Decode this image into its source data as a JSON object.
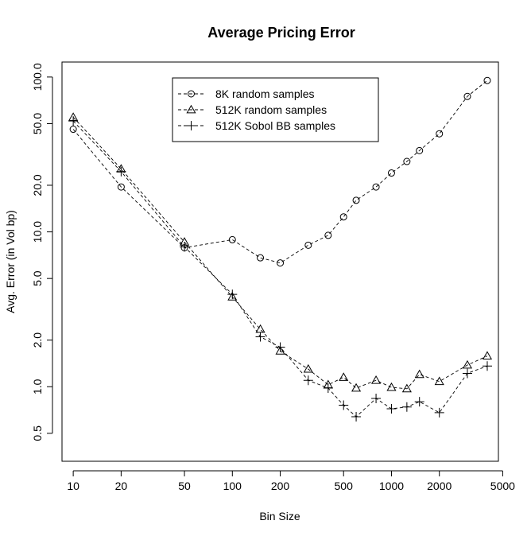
{
  "chart_data": {
    "type": "line",
    "title": "Average Pricing Error",
    "xlabel": "Bin Size",
    "ylabel": "Avg. Error (in Vol bp)",
    "x_scale": "log",
    "y_scale": "log",
    "xlim": [
      8.5,
      4700
    ],
    "ylim": [
      0.33,
      125
    ],
    "x_ticks": [
      10,
      20,
      50,
      100,
      200,
      500,
      1000,
      2000,
      5000
    ],
    "x_tick_labels": [
      "10",
      "20",
      "50",
      "100",
      "200",
      "500",
      "1000",
      "2000",
      "5000"
    ],
    "y_ticks": [
      0.5,
      1.0,
      2.0,
      5.0,
      10.0,
      20.0,
      50.0,
      100.0
    ],
    "y_tick_labels": [
      "0.5",
      "1.0",
      "2.0",
      "5.0",
      "10.0",
      "20.0",
      "50.0",
      "100.0"
    ],
    "legend_position": "top-center",
    "grid": false,
    "series": [
      {
        "name": "8K random samples",
        "marker": "circle",
        "points": [
          [
            10,
            46
          ],
          [
            20,
            19.5
          ],
          [
            50,
            7.9
          ],
          [
            100,
            8.9
          ],
          [
            150,
            6.8
          ],
          [
            200,
            6.3
          ],
          [
            300,
            8.2
          ],
          [
            400,
            9.5
          ],
          [
            500,
            12.5
          ],
          [
            600,
            16.0
          ],
          [
            800,
            19.5
          ],
          [
            1000,
            24.0
          ],
          [
            1250,
            28.5
          ],
          [
            1500,
            33.5
          ],
          [
            2000,
            43.0
          ],
          [
            3000,
            75.0
          ],
          [
            4000,
            95.0
          ]
        ]
      },
      {
        "name": "512K random samples",
        "marker": "triangle",
        "points": [
          [
            10,
            55
          ],
          [
            20,
            25.5
          ],
          [
            50,
            8.6
          ],
          [
            100,
            3.8
          ],
          [
            150,
            2.35
          ],
          [
            200,
            1.7
          ],
          [
            300,
            1.3
          ],
          [
            400,
            1.03
          ],
          [
            500,
            1.15
          ],
          [
            600,
            0.98
          ],
          [
            800,
            1.1
          ],
          [
            1000,
            0.99
          ],
          [
            1250,
            0.97
          ],
          [
            1500,
            1.2
          ],
          [
            2000,
            1.08
          ],
          [
            3000,
            1.38
          ],
          [
            4000,
            1.58
          ]
        ]
      },
      {
        "name": "512K Sobol BB samples",
        "marker": "plus",
        "points": [
          [
            10,
            52
          ],
          [
            20,
            24.5
          ],
          [
            50,
            8.0
          ],
          [
            100,
            3.95
          ],
          [
            150,
            2.1
          ],
          [
            200,
            1.8
          ],
          [
            300,
            1.1
          ],
          [
            400,
            0.98
          ],
          [
            500,
            0.76
          ],
          [
            600,
            0.64
          ],
          [
            800,
            0.84
          ],
          [
            1000,
            0.72
          ],
          [
            1250,
            0.74
          ],
          [
            1500,
            0.8
          ],
          [
            2000,
            0.68
          ],
          [
            3000,
            1.22
          ],
          [
            4000,
            1.36
          ]
        ]
      }
    ]
  }
}
